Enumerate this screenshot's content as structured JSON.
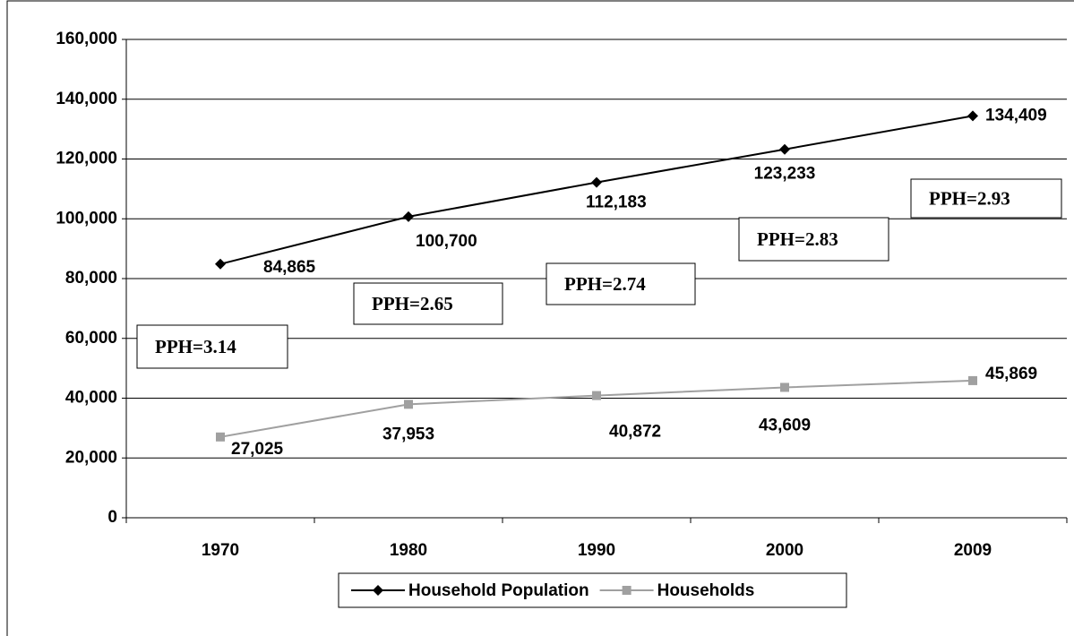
{
  "chart_data": {
    "type": "line",
    "categories": [
      "1970",
      "1980",
      "1990",
      "2000",
      "2009"
    ],
    "series": [
      {
        "name": "Household Population",
        "color": "#000000",
        "marker": "diamond",
        "values": [
          84865,
          100700,
          112183,
          123233,
          134409
        ],
        "value_labels": [
          "84,865",
          "100,700",
          "112,183",
          "123,233",
          "134,409"
        ]
      },
      {
        "name": "Households",
        "color": "#a0a0a0",
        "marker": "square",
        "values": [
          27025,
          37953,
          40872,
          43609,
          45869
        ],
        "value_labels": [
          "27,025",
          "37,953",
          "40,872",
          "43,609",
          "45,869"
        ]
      }
    ],
    "annotations": [
      "PPH=3.14",
      "PPH=2.65",
      "PPH=2.74",
      "PPH=2.83",
      "PPH=2.93"
    ],
    "ylim": [
      0,
      160000
    ],
    "yticks": [
      0,
      {
        "value": 20000,
        "label": "20,000"
      },
      {
        "value": 40000,
        "label": "40,000"
      },
      {
        "value": 60000,
        "label": "60,000"
      },
      {
        "value": 80000,
        "label": "80,000"
      },
      {
        "value": 100000,
        "label": "100,000"
      },
      {
        "value": 120000,
        "label": "120,000"
      },
      {
        "value": 140000,
        "label": "140,000"
      },
      {
        "value": 160000,
        "label": "160,000"
      }
    ],
    "grid": true,
    "legend": "bottom"
  }
}
